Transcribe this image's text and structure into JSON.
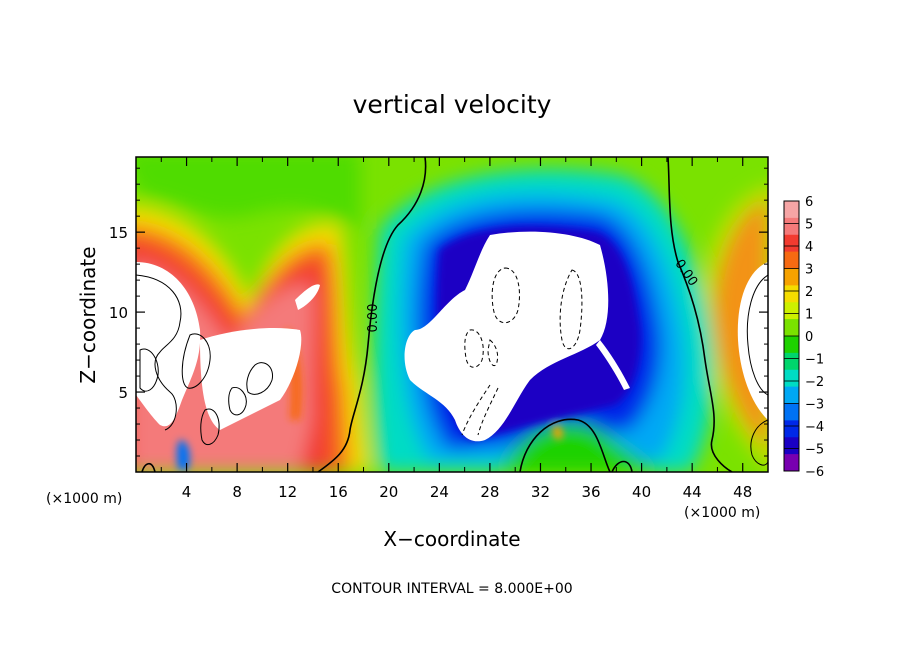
{
  "chart_data": {
    "type": "heatmap",
    "title": "vertical velocity",
    "xlabel": "X−coordinate",
    "ylabel": "Z−coordinate",
    "x_unit_left": "(×1000 m)",
    "x_unit_right": "(×1000 m)",
    "footer": "CONTOUR INTERVAL = 8.000E+00",
    "xlim": [
      0,
      50
    ],
    "ylim": [
      0,
      19.7
    ],
    "x_ticks": [
      "4",
      "8",
      "12",
      "16",
      "20",
      "24",
      "28",
      "32",
      "36",
      "40",
      "44",
      "48"
    ],
    "y_ticks": [
      "5",
      "10",
      "15"
    ],
    "colorbar": {
      "levels": [
        "6",
        "5",
        "4",
        "3",
        "2",
        "1",
        "0",
        "−1",
        "−2",
        "−3",
        "−4",
        "−5",
        "−6"
      ],
      "colors": [
        "#f6a5a5",
        "#f47a7a",
        "#f23b30",
        "#f66a12",
        "#f6a200",
        "#f4dc00",
        "#cdf000",
        "#7ae200",
        "#1ed200",
        "#00d66c",
        "#00dcc4",
        "#00a8f4",
        "#0072f4",
        "#0028e8",
        "#1a00c4",
        "#7800b0"
      ]
    },
    "contour_labels": [
      "0.00",
      "0.00"
    ],
    "grid": false
  }
}
